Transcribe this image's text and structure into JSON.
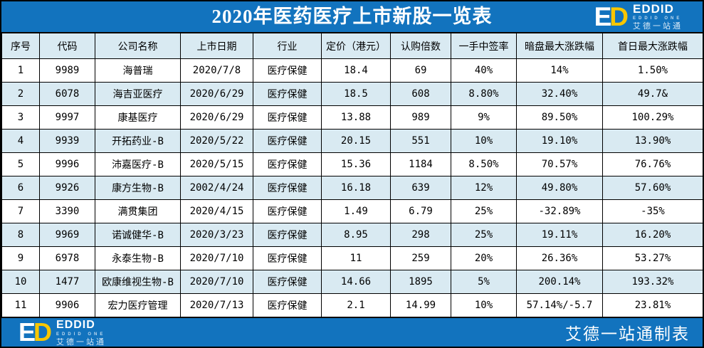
{
  "title": "2020年医药医疗上市新股一览表",
  "logo": {
    "mark_e": "E",
    "mark_d": "D",
    "brand": "EDDID",
    "tagline_en": "EDDID ONE",
    "tagline_cn": "艾德一站通"
  },
  "footer": {
    "credit": "艾德一站通制表"
  },
  "colors": {
    "primary_blue": "#1273BE",
    "stripe_blue": "#D9EAF2",
    "logo_yellow": "#F7C600",
    "border_black": "#000000"
  },
  "chart_data": {
    "type": "table",
    "title": "2020年医药医疗上市新股一览表",
    "columns": [
      "序号",
      "代码",
      "公司名称",
      "上市日期",
      "行业",
      "定价（港元）",
      "认购倍数",
      "一手中签率",
      "暗盘最大涨跌幅",
      "首日最大涨跌幅"
    ],
    "rows": [
      [
        "1",
        "9989",
        "海普瑞",
        "2020/7/8",
        "医疗保健",
        "18.4",
        "69",
        "40%",
        "14%",
        "1.50%"
      ],
      [
        "2",
        "6078",
        "海吉亚医疗",
        "2020/6/29",
        "医疗保健",
        "18.5",
        "608",
        "8.80%",
        "32.40%",
        "49.7&"
      ],
      [
        "3",
        "9997",
        "康基医疗",
        "2020/6/29",
        "医疗保健",
        "13.88",
        "989",
        "9%",
        "89.50%",
        "100.29%"
      ],
      [
        "4",
        "9939",
        "开拓药业-B",
        "2020/5/22",
        "医疗保健",
        "20.15",
        "551",
        "10%",
        "19.10%",
        "13.90%"
      ],
      [
        "5",
        "9996",
        "沛嘉医疗-B",
        "2020/5/15",
        "医疗保健",
        "15.36",
        "1184",
        "8.50%",
        "70.57%",
        "76.76%"
      ],
      [
        "6",
        "9926",
        "康方生物-B",
        "2002/4/24",
        "医疗保健",
        "16.18",
        "639",
        "12%",
        "49.80%",
        "57.60%"
      ],
      [
        "7",
        "3390",
        "满贯集团",
        "2020/4/15",
        "医疗保健",
        "1.49",
        "6.79",
        "25%",
        "-32.89%",
        "-35%"
      ],
      [
        "8",
        "9969",
        "诺诚健华-B",
        "2020/3/23",
        "医疗保健",
        "8.95",
        "298",
        "25%",
        "19.11%",
        "16.20%"
      ],
      [
        "9",
        "6978",
        "永泰生物-B",
        "2020/7/10",
        "医疗保健",
        "11",
        "259",
        "20%",
        "26.36%",
        "53.27%"
      ],
      [
        "10",
        "1477",
        "欧康维视生物-B",
        "2020/7/10",
        "医疗保健",
        "14.66",
        "1895",
        "5%",
        "200.14%",
        "193.32%"
      ],
      [
        "11",
        "9906",
        "宏力医疗管理",
        "2020/7/13",
        "医疗保健",
        "2.1",
        "14.99",
        "10%",
        "57.14%/-5.7",
        "23.81%"
      ]
    ]
  }
}
